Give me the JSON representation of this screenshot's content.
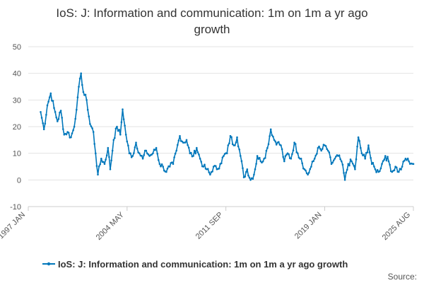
{
  "chart_data": {
    "type": "line",
    "title_lines": [
      "IoS: J: Information and communication: 1m on 1m a yr ago",
      "growth"
    ],
    "xlabel": "",
    "ylabel": "",
    "ylim": [
      -10,
      50
    ],
    "yticks": [
      -10,
      0,
      10,
      20,
      30,
      40,
      50
    ],
    "xlim": [
      "1997-01",
      "2025-08"
    ],
    "xticks": [
      "1997 JAN",
      "2004 MAY",
      "2011 SEP",
      "2019 JAN",
      "2025 AUG"
    ],
    "grid": true,
    "legend": "bottom",
    "source_label": "Source:",
    "series": [
      {
        "name": "IoS: J: Information and communication: 1m on 1m a yr ago growth",
        "color": "#0077bb",
        "points": [
          [
            "1997-12",
            25.5
          ],
          [
            "1998-03",
            19.0
          ],
          [
            "1998-06",
            28.0
          ],
          [
            "1998-09",
            32.5
          ],
          [
            "1998-12",
            27.0
          ],
          [
            "1999-03",
            22.0
          ],
          [
            "1999-06",
            26.0
          ],
          [
            "1999-09",
            17.0
          ],
          [
            "1999-12",
            18.0
          ],
          [
            "2000-03",
            16.0
          ],
          [
            "2000-06",
            20.0
          ],
          [
            "2000-09",
            31.0
          ],
          [
            "2000-12",
            40.0
          ],
          [
            "2001-02",
            33.0
          ],
          [
            "2001-05",
            30.0
          ],
          [
            "2001-08",
            21.0
          ],
          [
            "2001-11",
            18.0
          ],
          [
            "2002-01",
            10.0
          ],
          [
            "2002-03",
            2.0
          ],
          [
            "2002-06",
            8.0
          ],
          [
            "2002-09",
            6.0
          ],
          [
            "2002-12",
            12.0
          ],
          [
            "2003-02",
            4.0
          ],
          [
            "2003-05",
            15.0
          ],
          [
            "2003-08",
            20.0
          ],
          [
            "2003-11",
            17.0
          ],
          [
            "2004-01",
            26.5
          ],
          [
            "2004-04",
            17.0
          ],
          [
            "2004-07",
            10.0
          ],
          [
            "2004-10",
            9.0
          ],
          [
            "2005-01",
            14.0
          ],
          [
            "2005-04",
            10.0
          ],
          [
            "2005-07",
            8.0
          ],
          [
            "2005-10",
            11.0
          ],
          [
            "2006-01",
            9.0
          ],
          [
            "2006-04",
            10.0
          ],
          [
            "2006-07",
            12.0
          ],
          [
            "2006-10",
            6.0
          ],
          [
            "2007-01",
            5.0
          ],
          [
            "2007-04",
            3.0
          ],
          [
            "2007-07",
            5.0
          ],
          [
            "2007-10",
            6.0
          ],
          [
            "2008-01",
            11.0
          ],
          [
            "2008-04",
            16.5
          ],
          [
            "2008-07",
            14.0
          ],
          [
            "2008-10",
            15.0
          ],
          [
            "2009-01",
            10.0
          ],
          [
            "2009-04",
            9.0
          ],
          [
            "2009-07",
            12.0
          ],
          [
            "2009-10",
            8.0
          ],
          [
            "2010-01",
            5.0
          ],
          [
            "2010-04",
            4.0
          ],
          [
            "2010-07",
            2.0
          ],
          [
            "2010-10",
            5.0
          ],
          [
            "2011-01",
            4.0
          ],
          [
            "2011-04",
            6.0
          ],
          [
            "2011-07",
            9.0
          ],
          [
            "2011-10",
            10.0
          ],
          [
            "2012-01",
            16.5
          ],
          [
            "2012-04",
            13.0
          ],
          [
            "2012-07",
            16.0
          ],
          [
            "2012-10",
            9.0
          ],
          [
            "2013-01",
            1.0
          ],
          [
            "2013-04",
            4.0
          ],
          [
            "2013-07",
            0.0
          ],
          [
            "2013-10",
            2.0
          ],
          [
            "2014-01",
            9.0
          ],
          [
            "2014-04",
            7.0
          ],
          [
            "2014-07",
            8.0
          ],
          [
            "2014-10",
            12.0
          ],
          [
            "2015-01",
            19.0
          ],
          [
            "2015-04",
            15.0
          ],
          [
            "2015-07",
            14.0
          ],
          [
            "2015-10",
            13.0
          ],
          [
            "2016-01",
            7.0
          ],
          [
            "2016-04",
            10.0
          ],
          [
            "2016-07",
            8.0
          ],
          [
            "2016-10",
            14.0
          ],
          [
            "2017-01",
            10.0
          ],
          [
            "2017-04",
            8.0
          ],
          [
            "2017-07",
            4.0
          ],
          [
            "2017-10",
            2.0
          ],
          [
            "2018-01",
            5.0
          ],
          [
            "2018-04",
            8.0
          ],
          [
            "2018-07",
            12.0
          ],
          [
            "2018-10",
            11.0
          ],
          [
            "2019-01",
            13.0
          ],
          [
            "2019-04",
            11.0
          ],
          [
            "2019-07",
            6.0
          ],
          [
            "2019-10",
            8.0
          ],
          [
            "2020-01",
            9.0
          ],
          [
            "2020-04",
            7.0
          ],
          [
            "2020-07",
            0.0
          ],
          [
            "2020-10",
            6.0
          ],
          [
            "2021-01",
            7.0
          ],
          [
            "2021-04",
            4.0
          ],
          [
            "2021-07",
            16.0
          ],
          [
            "2021-10",
            10.0
          ],
          [
            "2022-01",
            8.0
          ],
          [
            "2022-04",
            13.0
          ],
          [
            "2022-07",
            6.0
          ],
          [
            "2022-10",
            4.0
          ],
          [
            "2023-01",
            3.0
          ],
          [
            "2023-04",
            6.0
          ],
          [
            "2023-07",
            9.0
          ],
          [
            "2023-10",
            7.0
          ],
          [
            "2024-01",
            3.0
          ],
          [
            "2024-04",
            5.0
          ],
          [
            "2024-07",
            3.0
          ],
          [
            "2024-10",
            5.0
          ],
          [
            "2025-01",
            8.0
          ],
          [
            "2025-04",
            7.0
          ],
          [
            "2025-08",
            6.0
          ]
        ]
      }
    ]
  }
}
